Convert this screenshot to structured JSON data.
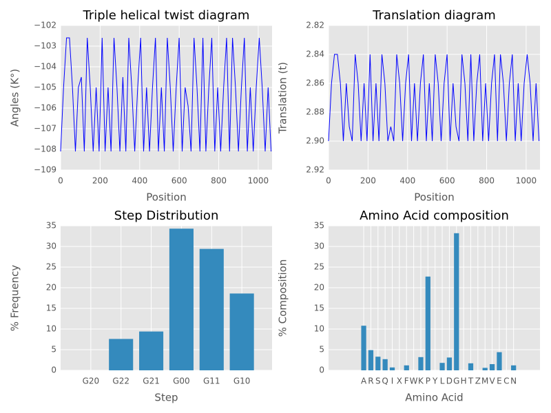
{
  "chart_data": [
    {
      "type": "line",
      "title": "Triple helical twist diagram",
      "x_label": "Position",
      "y_label": "Angles (K°)",
      "color": "#0000ff",
      "x": [
        0,
        15,
        30,
        45,
        60,
        75,
        90,
        105,
        120,
        135,
        150,
        165,
        180,
        195,
        210,
        225,
        240,
        255,
        270,
        285,
        300,
        315,
        330,
        345,
        360,
        375,
        390,
        405,
        420,
        435,
        450,
        465,
        480,
        495,
        510,
        525,
        540,
        555,
        570,
        585,
        600,
        615,
        630,
        645,
        660,
        675,
        690,
        705,
        720,
        735,
        750,
        765,
        780,
        795,
        810,
        825,
        840,
        855,
        870,
        885,
        900,
        915,
        930,
        945,
        960,
        975,
        990,
        1005,
        1020,
        1035,
        1050,
        1065
      ],
      "values": [
        -108.1,
        -105,
        -102.6,
        -102.6,
        -105,
        -108.1,
        -105,
        -104.5,
        -108.1,
        -102.6,
        -105,
        -108.1,
        -105,
        -108.1,
        -102.6,
        -108.1,
        -105,
        -108.1,
        -102.6,
        -105,
        -108.1,
        -104.5,
        -108.1,
        -102.6,
        -105,
        -108.1,
        -105,
        -102.6,
        -108.1,
        -105,
        -108.1,
        -105,
        -102.6,
        -108.1,
        -105,
        -108.1,
        -102.6,
        -105,
        -108.1,
        -105,
        -102.6,
        -108.1,
        -105,
        -105.9,
        -108.1,
        -102.6,
        -105,
        -108.1,
        -102.6,
        -108.1,
        -105,
        -102.6,
        -108.1,
        -105,
        -108.1,
        -105,
        -102.6,
        -108.1,
        -102.6,
        -105,
        -108.1,
        -105,
        -102.6,
        -108.1,
        -105,
        -108.1,
        -105,
        -102.6,
        -105,
        -108.1,
        -105,
        -108.1
      ],
      "xlim": [
        0,
        1070
      ],
      "xticks": [
        0,
        200,
        400,
        600,
        800,
        1000
      ],
      "ylim": [
        -109,
        -102
      ],
      "yticks": [
        {
          "value": -109,
          "label": "−109"
        },
        {
          "value": -108,
          "label": "−108"
        },
        {
          "value": -107,
          "label": "−107"
        },
        {
          "value": -106,
          "label": "−106"
        },
        {
          "value": -105,
          "label": "−105"
        },
        {
          "value": -104,
          "label": "−104"
        },
        {
          "value": -103,
          "label": "−103"
        },
        {
          "value": -102,
          "label": "−102"
        }
      ],
      "grid": true
    },
    {
      "type": "line",
      "title": "Translation diagram",
      "x_label": "Position",
      "y_label": "Translation (t)",
      "color": "#0000ff",
      "x": [
        0,
        15,
        30,
        45,
        60,
        75,
        90,
        105,
        120,
        135,
        150,
        165,
        180,
        195,
        210,
        225,
        240,
        255,
        270,
        285,
        300,
        315,
        330,
        345,
        360,
        375,
        390,
        405,
        420,
        435,
        450,
        465,
        480,
        495,
        510,
        525,
        540,
        555,
        570,
        585,
        600,
        615,
        630,
        645,
        660,
        675,
        690,
        705,
        720,
        735,
        750,
        765,
        780,
        795,
        810,
        825,
        840,
        855,
        870,
        885,
        900,
        915,
        930,
        945,
        960,
        975,
        990,
        1005,
        1020,
        1035,
        1050,
        1065
      ],
      "values": [
        2.9,
        2.86,
        2.84,
        2.84,
        2.86,
        2.9,
        2.86,
        2.89,
        2.9,
        2.84,
        2.86,
        2.9,
        2.86,
        2.9,
        2.84,
        2.9,
        2.86,
        2.9,
        2.84,
        2.86,
        2.9,
        2.89,
        2.9,
        2.84,
        2.86,
        2.9,
        2.86,
        2.84,
        2.9,
        2.86,
        2.9,
        2.86,
        2.84,
        2.9,
        2.86,
        2.9,
        2.84,
        2.86,
        2.9,
        2.86,
        2.84,
        2.9,
        2.86,
        2.89,
        2.9,
        2.84,
        2.86,
        2.9,
        2.84,
        2.9,
        2.86,
        2.84,
        2.9,
        2.86,
        2.9,
        2.86,
        2.84,
        2.9,
        2.84,
        2.86,
        2.9,
        2.86,
        2.84,
        2.9,
        2.86,
        2.9,
        2.86,
        2.84,
        2.86,
        2.9,
        2.86,
        2.9
      ],
      "xlim": [
        0,
        1070
      ],
      "xticks": [
        0,
        200,
        400,
        600,
        800,
        1000
      ],
      "ylim": [
        2.92,
        2.82
      ],
      "yticks": [
        2.82,
        2.84,
        2.86,
        2.88,
        {
          "value": 2.9,
          "label": "2.90"
        },
        2.92
      ],
      "grid": true
    },
    {
      "type": "bar",
      "title": "Step Distribution",
      "x_label": "Step",
      "y_label": "% Frequency",
      "color": "#348abd",
      "categories": [
        "G20",
        "G22",
        "G21",
        "G00",
        "G11",
        "G10"
      ],
      "values": [
        0,
        7.6,
        9.4,
        34.3,
        29.4,
        18.6
      ],
      "ylim": [
        0,
        35
      ],
      "yticks": [
        0,
        5,
        10,
        15,
        20,
        25,
        30,
        35
      ],
      "grid": true
    },
    {
      "type": "bar",
      "title": "Amino Acid composition",
      "x_label": "Amino Acid",
      "y_label": "% Composition",
      "color": "#348abd",
      "categories": [
        "A",
        "R",
        "S",
        "Q",
        "I",
        "X",
        "F",
        "W",
        "K",
        "P",
        "Y",
        "L",
        "D",
        "G",
        "H",
        "T",
        "Z",
        "M",
        "V",
        "E",
        "C",
        "N"
      ],
      "values": [
        10.8,
        4.9,
        3.3,
        2.7,
        0.7,
        0,
        1.2,
        0,
        3.2,
        22.7,
        0,
        1.8,
        3.1,
        33.2,
        0,
        1.7,
        0,
        0.6,
        1.5,
        4.4,
        0,
        1.2
      ],
      "ylim": [
        0,
        35
      ],
      "yticks": [
        0,
        5,
        10,
        15,
        20,
        25,
        30,
        35
      ],
      "grid": true
    }
  ]
}
